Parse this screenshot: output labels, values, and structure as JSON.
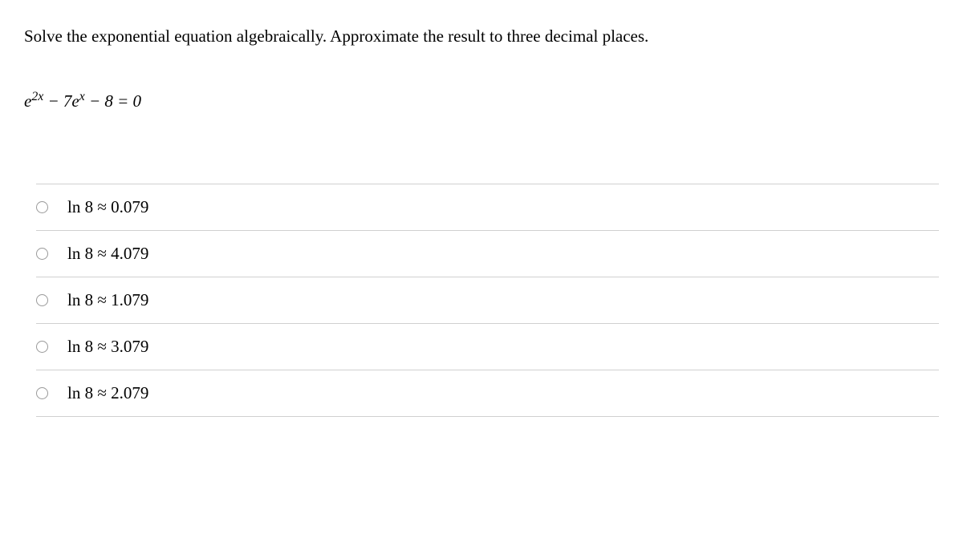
{
  "question": {
    "text": "Solve the exponential equation algebraically. Approximate the result to three decimal places.",
    "text_color": "#000000",
    "font_size_pt": 16
  },
  "equation": {
    "html_parts": [
      "e",
      "2x",
      " − 7",
      "e",
      "x",
      " − 8 = 0"
    ],
    "font_style": "italic"
  },
  "options": [
    {
      "label": "ln 8 ≈ 0.079",
      "selected": false
    },
    {
      "label": "ln 8 ≈ 4.079",
      "selected": false
    },
    {
      "label": "ln 8 ≈ 1.079",
      "selected": false
    },
    {
      "label": "ln 8 ≈ 3.079",
      "selected": false
    },
    {
      "label": "ln 8 ≈ 2.079",
      "selected": false
    }
  ],
  "styling": {
    "background_color": "#ffffff",
    "text_color": "#000000",
    "border_color": "#d0d0d0",
    "radio_border_color": "#999999",
    "font_family": "Times New Roman"
  }
}
